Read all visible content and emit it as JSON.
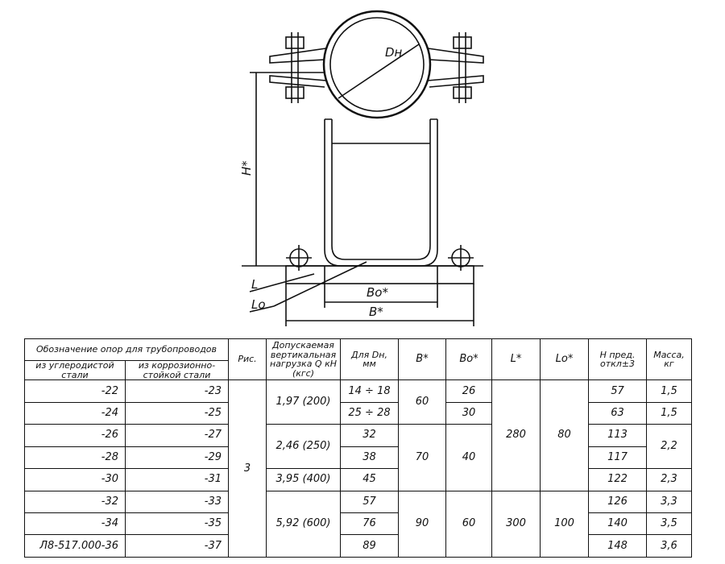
{
  "drawing": {
    "labels": {
      "dn": "Dн",
      "h": "H*",
      "l": "L",
      "lo": "Lo",
      "bo": "Bo*",
      "b": "B*"
    }
  },
  "table": {
    "headers": {
      "designation": "Обозначение опор для трубопроводов",
      "carbon": "из углеродистой стали",
      "stainless": "из коррозионно-стойкой стали",
      "fig": "Рис.",
      "load": "Допускаемая вертикальная нагрузка Q кН (кгс)",
      "dn": "Для Dн, мм",
      "b": "B*",
      "bo": "Bo*",
      "l": "L*",
      "lo": "Lo*",
      "h": "H пред. откл±3",
      "mass": "Масса, кг"
    },
    "carbon": [
      "-22",
      "-24",
      "-26",
      "-28",
      "-30",
      "-32",
      "-34",
      "Л8-517.000-36"
    ],
    "stainless": [
      "-23",
      "-25",
      "-27",
      "-29",
      "-31",
      "-33",
      "-35",
      "-37"
    ],
    "fig": [
      {
        "v": "3",
        "span": 8
      }
    ],
    "load": [
      {
        "v": "1,97 (200)",
        "span": 2
      },
      {
        "v": "2,46 (250)",
        "span": 2
      },
      {
        "v": "3,95 (400)",
        "span": 1
      },
      {
        "v": "5,92 (600)",
        "span": 3
      }
    ],
    "dn": [
      {
        "v": "14 ÷ 18",
        "span": 1
      },
      {
        "v": "25 ÷ 28",
        "span": 1
      },
      {
        "v": "32",
        "span": 1
      },
      {
        "v": "38",
        "span": 1
      },
      {
        "v": "45",
        "span": 1
      },
      {
        "v": "57",
        "span": 1
      },
      {
        "v": "76",
        "span": 1
      },
      {
        "v": "89",
        "span": 1
      }
    ],
    "b": [
      {
        "v": "60",
        "span": 2
      },
      {
        "v": "70",
        "span": 3
      },
      {
        "v": "90",
        "span": 3
      }
    ],
    "bo": [
      {
        "v": "26",
        "span": 1
      },
      {
        "v": "30",
        "span": 1
      },
      {
        "v": "40",
        "span": 3
      },
      {
        "v": "60",
        "span": 3
      }
    ],
    "l": [
      {
        "v": "280",
        "span": 5
      },
      {
        "v": "300",
        "span": 3
      }
    ],
    "lo": [
      {
        "v": "80",
        "span": 5
      },
      {
        "v": "100",
        "span": 3
      }
    ],
    "h": [
      {
        "v": "57",
        "span": 1
      },
      {
        "v": "63",
        "span": 1
      },
      {
        "v": "113",
        "span": 1
      },
      {
        "v": "117",
        "span": 1
      },
      {
        "v": "122",
        "span": 1
      },
      {
        "v": "126",
        "span": 1
      },
      {
        "v": "140",
        "span": 1
      },
      {
        "v": "148",
        "span": 1
      }
    ],
    "mass": [
      {
        "v": "1,5",
        "span": 1
      },
      {
        "v": "1,5",
        "span": 1
      },
      {
        "v": "2,2",
        "span": 2
      },
      {
        "v": "2,3",
        "span": 1
      },
      {
        "v": "3,3",
        "span": 1
      },
      {
        "v": "3,5",
        "span": 1
      },
      {
        "v": "3,6",
        "span": 1
      }
    ]
  }
}
